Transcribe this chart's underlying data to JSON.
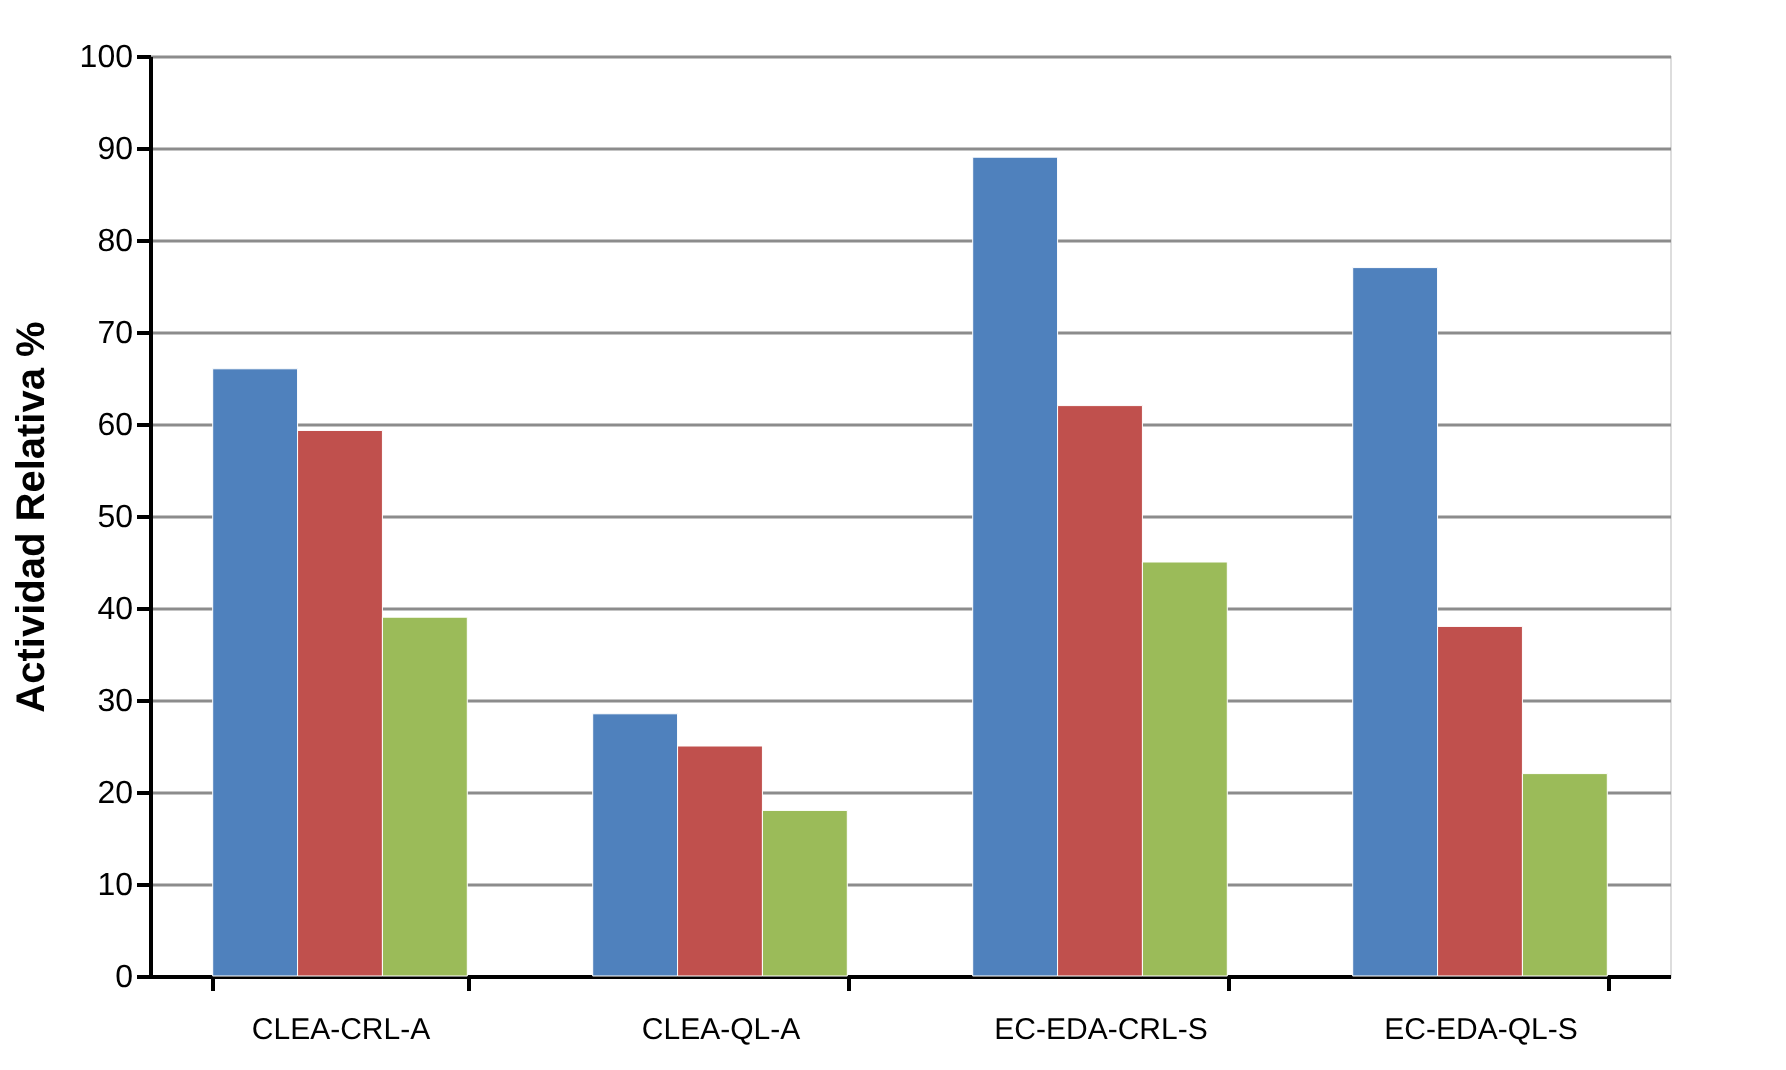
{
  "chart_data": {
    "type": "bar",
    "ylabel": "Actividad Relativa %",
    "categories": [
      "CLEA-CRL-A",
      "CLEA-QL-A",
      "EC-EDA-CRL-S",
      "EC-EDA-QL-S"
    ],
    "series": [
      {
        "color": "#4f81bd",
        "values": [
          66,
          28.5,
          89,
          77
        ]
      },
      {
        "color": "#c0504d",
        "values": [
          59.3,
          25,
          62,
          38
        ]
      },
      {
        "color": "#9bbb59",
        "values": [
          39,
          18,
          45,
          22
        ]
      }
    ],
    "ylim": [
      0,
      100
    ],
    "yticks": [
      0,
      10,
      20,
      30,
      40,
      50,
      60,
      70,
      80,
      90,
      100
    ],
    "grid": "y",
    "legend": false
  }
}
